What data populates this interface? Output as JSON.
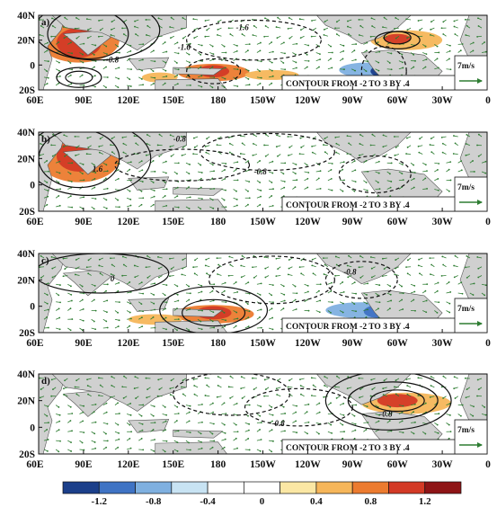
{
  "panels": [
    {
      "label": "a)",
      "ref_vector": "7m/s",
      "contour_info": "CONTOUR FROM -2 TO 3 BY .4",
      "contour_labels": [
        "-1.6",
        "-1.6",
        "-0.8"
      ]
    },
    {
      "label": "b)",
      "ref_vector": "7m/s",
      "contour_info": "CONTOUR FROM -2 TO 3 BY .4",
      "contour_labels": [
        "-0.8",
        "1.6",
        "-0.8"
      ]
    },
    {
      "label": "c)",
      "ref_vector": "7m/s",
      "contour_info": "CONTOUR FROM -2 TO 3 BY .4",
      "contour_labels": [
        "0",
        "-0.8"
      ]
    },
    {
      "label": "d)",
      "ref_vector": "7m/s",
      "contour_info": "CONTOUR FROM -2 TO 3 BY .4",
      "contour_labels": [
        "-0.8",
        "-0.8"
      ]
    }
  ],
  "lat_labels": [
    "40N",
    "20N",
    "0",
    "20S"
  ],
  "lon_labels": [
    "60E",
    "90E",
    "120E",
    "150E",
    "180",
    "150W",
    "120W",
    "90W",
    "60W",
    "30W",
    "0"
  ],
  "colorbar": {
    "labels": [
      "-1.2",
      "-0.8",
      "-0.4",
      "0",
      "0.4",
      "0.8",
      "1.2"
    ],
    "colors": [
      "#1b3f8a",
      "#3f73c4",
      "#7fb0e0",
      "#c8e3f3",
      "#ffffff",
      "#ffffff",
      "#fbe7a4",
      "#f6b65a",
      "#ec7b2f",
      "#d33a26",
      "#8e1416"
    ]
  },
  "map_colors": {
    "land": "#d0d0d0",
    "vector": "#2e7d32",
    "contour": "#111111"
  }
}
